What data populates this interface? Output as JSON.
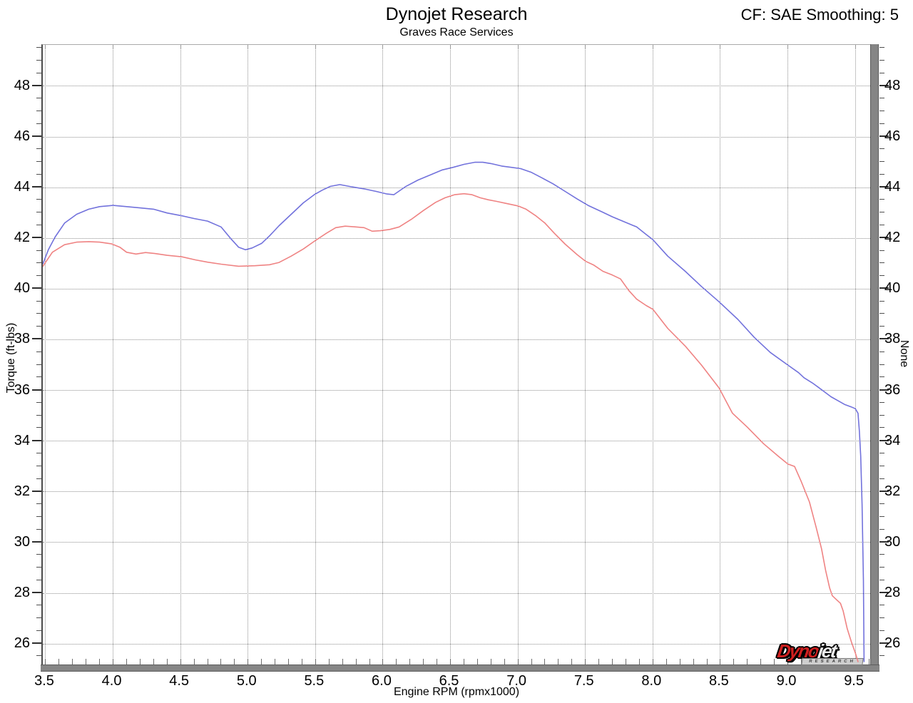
{
  "header": {
    "title": "Dynojet Research",
    "subtitle": "Graves Race Services",
    "smoothing_label": "CF: SAE Smoothing: 5"
  },
  "logo": {
    "dyno": "Dyno",
    "jet": "jet",
    "research": "RESEARCH"
  },
  "chart_data": {
    "type": "line",
    "title": "Dynojet Research",
    "subtitle": "Graves Race Services",
    "annotation_top_right": "CF: SAE Smoothing: 5",
    "xlabel": "Engine RPM (rpmx1000)",
    "ylabel_left": "Torque (ft-lbs)",
    "ylabel_right": "None",
    "xlim": [
      3.479,
      9.621
    ],
    "ylim": [
      25.16,
      49.63
    ],
    "grid": "dotted-at-major-ticks",
    "legend_position": "none",
    "x_major_ticks": [
      3.5,
      4.0,
      4.5,
      5.0,
      5.5,
      6.0,
      6.5,
      7.0,
      7.5,
      8.0,
      8.5,
      9.0,
      9.5
    ],
    "x_tick_labels": [
      "3.5",
      "4.0",
      "4.5",
      "5.0",
      "5.5",
      "6.0",
      "6.5",
      "7.0",
      "7.5",
      "8.0",
      "8.5",
      "9.0",
      "9.5"
    ],
    "x_minor": {
      "from": 3.5,
      "to": 9.6,
      "step": 0.1
    },
    "y_major_ticks": [
      26,
      28,
      30,
      32,
      34,
      36,
      38,
      40,
      42,
      44,
      46,
      48
    ],
    "y_tick_labels": [
      "26",
      "28",
      "30",
      "32",
      "34",
      "36",
      "38",
      "40",
      "42",
      "44",
      "46",
      "48"
    ],
    "y_minor": {
      "from": 25.5,
      "to": 49.5,
      "step": 0.5
    },
    "colors": {
      "grid": "#8f8f8f",
      "wall": "#858585",
      "text": "#000000"
    },
    "series": [
      {
        "name": "torque-run-blue",
        "color": "#7272dc",
        "points": [
          [
            3.48,
            41.0
          ],
          [
            3.52,
            41.55
          ],
          [
            3.57,
            42.05
          ],
          [
            3.64,
            42.6
          ],
          [
            3.73,
            42.95
          ],
          [
            3.82,
            43.15
          ],
          [
            3.9,
            43.25
          ],
          [
            4.0,
            43.3
          ],
          [
            4.1,
            43.25
          ],
          [
            4.2,
            43.2
          ],
          [
            4.3,
            43.15
          ],
          [
            4.4,
            43.0
          ],
          [
            4.5,
            42.9
          ],
          [
            4.6,
            42.78
          ],
          [
            4.7,
            42.68
          ],
          [
            4.8,
            42.45
          ],
          [
            4.87,
            42.0
          ],
          [
            4.93,
            41.65
          ],
          [
            4.98,
            41.55
          ],
          [
            5.03,
            41.62
          ],
          [
            5.1,
            41.8
          ],
          [
            5.16,
            42.1
          ],
          [
            5.23,
            42.5
          ],
          [
            5.32,
            42.95
          ],
          [
            5.41,
            43.4
          ],
          [
            5.49,
            43.72
          ],
          [
            5.55,
            43.9
          ],
          [
            5.61,
            44.05
          ],
          [
            5.68,
            44.12
          ],
          [
            5.77,
            44.03
          ],
          [
            5.86,
            43.95
          ],
          [
            5.95,
            43.85
          ],
          [
            6.03,
            43.75
          ],
          [
            6.08,
            43.72
          ],
          [
            6.17,
            44.05
          ],
          [
            6.26,
            44.3
          ],
          [
            6.35,
            44.5
          ],
          [
            6.44,
            44.7
          ],
          [
            6.52,
            44.8
          ],
          [
            6.6,
            44.92
          ],
          [
            6.68,
            45.0
          ],
          [
            6.74,
            45.0
          ],
          [
            6.8,
            44.95
          ],
          [
            6.88,
            44.85
          ],
          [
            6.95,
            44.8
          ],
          [
            7.02,
            44.75
          ],
          [
            7.1,
            44.6
          ],
          [
            7.18,
            44.38
          ],
          [
            7.26,
            44.15
          ],
          [
            7.35,
            43.85
          ],
          [
            7.44,
            43.55
          ],
          [
            7.52,
            43.3
          ],
          [
            7.62,
            43.05
          ],
          [
            7.7,
            42.85
          ],
          [
            7.79,
            42.65
          ],
          [
            7.88,
            42.45
          ],
          [
            7.95,
            42.15
          ],
          [
            8.0,
            41.95
          ],
          [
            8.11,
            41.3
          ],
          [
            8.24,
            40.7
          ],
          [
            8.36,
            40.1
          ],
          [
            8.49,
            39.5
          ],
          [
            8.63,
            38.8
          ],
          [
            8.75,
            38.1
          ],
          [
            8.87,
            37.5
          ],
          [
            9.0,
            37.0
          ],
          [
            9.08,
            36.7
          ],
          [
            9.12,
            36.5
          ],
          [
            9.18,
            36.3
          ],
          [
            9.22,
            36.15
          ],
          [
            9.27,
            35.95
          ],
          [
            9.32,
            35.75
          ],
          [
            9.37,
            35.6
          ],
          [
            9.42,
            35.45
          ],
          [
            9.47,
            35.35
          ],
          [
            9.5,
            35.28
          ],
          [
            9.52,
            35.1
          ],
          [
            9.53,
            34.4
          ],
          [
            9.54,
            33.4
          ],
          [
            9.55,
            31.5
          ],
          [
            9.56,
            28.5
          ],
          [
            9.565,
            25.3
          ]
        ]
      },
      {
        "name": "torque-run-red",
        "color": "#ef8383",
        "points": [
          [
            3.48,
            40.9
          ],
          [
            3.55,
            41.45
          ],
          [
            3.64,
            41.75
          ],
          [
            3.73,
            41.85
          ],
          [
            3.82,
            41.87
          ],
          [
            3.9,
            41.85
          ],
          [
            3.99,
            41.78
          ],
          [
            4.05,
            41.65
          ],
          [
            4.1,
            41.45
          ],
          [
            4.17,
            41.38
          ],
          [
            4.24,
            41.44
          ],
          [
            4.31,
            41.4
          ],
          [
            4.4,
            41.33
          ],
          [
            4.51,
            41.27
          ],
          [
            4.61,
            41.15
          ],
          [
            4.7,
            41.06
          ],
          [
            4.8,
            40.98
          ],
          [
            4.93,
            40.9
          ],
          [
            5.05,
            40.92
          ],
          [
            5.16,
            40.96
          ],
          [
            5.23,
            41.05
          ],
          [
            5.32,
            41.3
          ],
          [
            5.41,
            41.58
          ],
          [
            5.49,
            41.88
          ],
          [
            5.58,
            42.2
          ],
          [
            5.65,
            42.42
          ],
          [
            5.72,
            42.48
          ],
          [
            5.8,
            42.45
          ],
          [
            5.86,
            42.42
          ],
          [
            5.92,
            42.28
          ],
          [
            5.98,
            42.3
          ],
          [
            6.05,
            42.35
          ],
          [
            6.12,
            42.45
          ],
          [
            6.21,
            42.75
          ],
          [
            6.3,
            43.1
          ],
          [
            6.39,
            43.42
          ],
          [
            6.46,
            43.6
          ],
          [
            6.53,
            43.72
          ],
          [
            6.6,
            43.76
          ],
          [
            6.66,
            43.72
          ],
          [
            6.72,
            43.6
          ],
          [
            6.78,
            43.52
          ],
          [
            6.84,
            43.46
          ],
          [
            6.91,
            43.38
          ],
          [
            7.0,
            43.28
          ],
          [
            7.06,
            43.15
          ],
          [
            7.13,
            42.9
          ],
          [
            7.2,
            42.6
          ],
          [
            7.27,
            42.2
          ],
          [
            7.35,
            41.77
          ],
          [
            7.44,
            41.35
          ],
          [
            7.5,
            41.1
          ],
          [
            7.56,
            40.95
          ],
          [
            7.63,
            40.7
          ],
          [
            7.7,
            40.55
          ],
          [
            7.76,
            40.4
          ],
          [
            7.82,
            39.95
          ],
          [
            7.88,
            39.6
          ],
          [
            7.95,
            39.35
          ],
          [
            8.0,
            39.2
          ],
          [
            8.11,
            38.45
          ],
          [
            8.24,
            37.75
          ],
          [
            8.36,
            37.0
          ],
          [
            8.49,
            36.1
          ],
          [
            8.59,
            35.1
          ],
          [
            8.7,
            34.55
          ],
          [
            8.82,
            33.9
          ],
          [
            8.93,
            33.4
          ],
          [
            9.0,
            33.1
          ],
          [
            9.05,
            33.0
          ],
          [
            9.1,
            32.4
          ],
          [
            9.16,
            31.6
          ],
          [
            9.21,
            30.6
          ],
          [
            9.25,
            29.75
          ],
          [
            9.28,
            28.9
          ],
          [
            9.31,
            28.2
          ],
          [
            9.33,
            27.9
          ],
          [
            9.36,
            27.75
          ],
          [
            9.39,
            27.6
          ],
          [
            9.41,
            27.3
          ],
          [
            9.44,
            26.6
          ],
          [
            9.47,
            26.1
          ],
          [
            9.5,
            25.65
          ],
          [
            9.52,
            25.3
          ]
        ]
      }
    ]
  }
}
